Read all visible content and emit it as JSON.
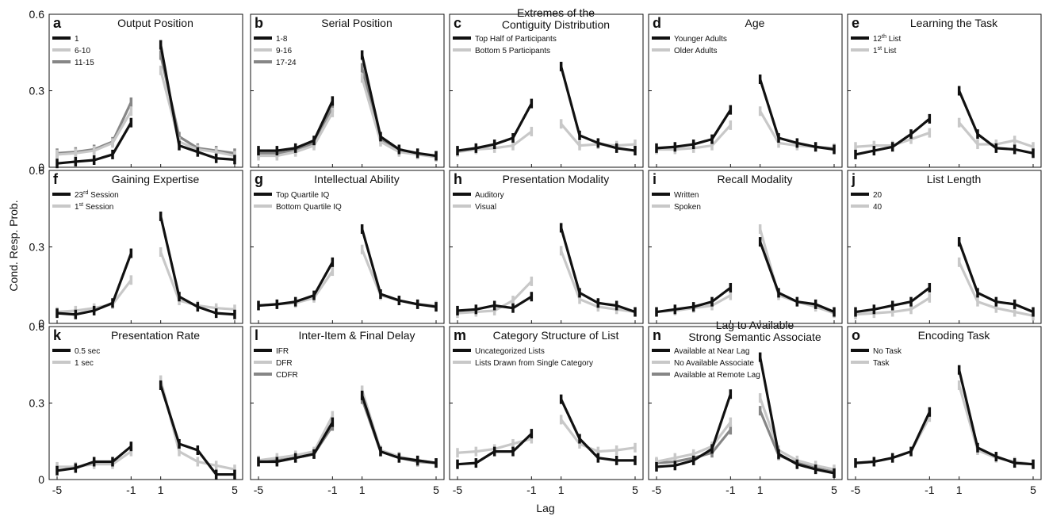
{
  "figure": {
    "x_label": "Lag",
    "y_label": "Cond. Resp. Prob."
  },
  "colors": {
    "black": "#111111",
    "light": "#c8c8c8",
    "mid": "#868686"
  },
  "chart_data": [
    {
      "type": "line",
      "letter": "a",
      "title": "Output Position",
      "ylim": [
        0,
        0.6
      ],
      "yticks": [
        "0",
        "0.3",
        "0.6"
      ],
      "x": [
        -5,
        -4,
        -3,
        -2,
        -1,
        1,
        2,
        3,
        4,
        5
      ],
      "legend": "top-left",
      "series": [
        {
          "name": "1",
          "color": "#111111",
          "values": [
            0.015,
            0.022,
            0.028,
            0.05,
            0.175,
            0.48,
            0.085,
            0.06,
            0.035,
            0.03
          ]
        },
        {
          "name": "6-10",
          "color": "#c8c8c8",
          "values": [
            0.05,
            0.055,
            0.065,
            0.095,
            0.22,
            0.38,
            0.1,
            0.07,
            0.06,
            0.045
          ]
        },
        {
          "name": "11-15",
          "color": "#868686",
          "values": [
            0.055,
            0.06,
            0.07,
            0.1,
            0.255,
            0.44,
            0.12,
            0.075,
            0.065,
            0.055
          ]
        }
      ]
    },
    {
      "type": "line",
      "letter": "b",
      "title": "Serial Position",
      "ylim": [
        0,
        0.6
      ],
      "yticks": [
        "0",
        "0.3",
        "0.6"
      ],
      "x": [
        -5,
        -4,
        -3,
        -2,
        -1,
        1,
        2,
        3,
        4,
        5
      ],
      "legend": "top-left",
      "series": [
        {
          "name": "1-8",
          "color": "#111111",
          "values": [
            0.065,
            0.065,
            0.075,
            0.105,
            0.26,
            0.44,
            0.12,
            0.07,
            0.055,
            0.045
          ]
        },
        {
          "name": "9-16",
          "color": "#c8c8c8",
          "values": [
            0.045,
            0.045,
            0.06,
            0.085,
            0.215,
            0.35,
            0.1,
            0.06,
            0.05,
            0.04
          ]
        },
        {
          "name": "17-24",
          "color": "#868686",
          "values": [
            0.055,
            0.055,
            0.065,
            0.095,
            0.235,
            0.39,
            0.11,
            0.065,
            0.05,
            0.045
          ]
        }
      ]
    },
    {
      "type": "line",
      "letter": "c",
      "title": "Extremes of the\nContiguity Distribution",
      "ylim": [
        0,
        0.6
      ],
      "yticks": [
        "0",
        "0.3",
        "0.6"
      ],
      "x": [
        -5,
        -4,
        -3,
        -2,
        -1,
        1,
        2,
        3,
        4,
        5
      ],
      "legend": "top-left",
      "series": [
        {
          "name": "Top Half of Participants",
          "color": "#111111",
          "values": [
            0.065,
            0.075,
            0.09,
            0.115,
            0.25,
            0.395,
            0.125,
            0.095,
            0.075,
            0.065
          ]
        },
        {
          "name": "Bottom 5 Participants",
          "color": "#c8c8c8",
          "values": [
            0.06,
            0.07,
            0.075,
            0.085,
            0.14,
            0.17,
            0.085,
            0.09,
            0.085,
            0.09
          ]
        }
      ]
    },
    {
      "type": "line",
      "letter": "d",
      "title": "Age",
      "ylim": [
        0,
        0.6
      ],
      "yticks": [
        "0",
        "0.3",
        "0.6"
      ],
      "x": [
        -5,
        -4,
        -3,
        -2,
        -1,
        1,
        2,
        3,
        4,
        5
      ],
      "legend": "top-left",
      "series": [
        {
          "name": "Younger Adults",
          "color": "#111111",
          "values": [
            0.075,
            0.08,
            0.09,
            0.11,
            0.225,
            0.345,
            0.115,
            0.095,
            0.08,
            0.07
          ]
        },
        {
          "name": "Older Adults",
          "color": "#c8c8c8",
          "values": [
            0.07,
            0.07,
            0.075,
            0.085,
            0.165,
            0.22,
            0.095,
            0.085,
            0.08,
            0.075
          ]
        }
      ]
    },
    {
      "type": "line",
      "letter": "e",
      "title": "Learning the Task",
      "ylim": [
        0,
        0.6
      ],
      "yticks": [
        "0",
        "0.3",
        "0.6"
      ],
      "x": [
        -5,
        -4,
        -3,
        -2,
        -1,
        1,
        2,
        3,
        4,
        5
      ],
      "legend": "top-left",
      "series": [
        {
          "name": "12",
          "sup": "th",
          "suffix": " List",
          "color": "#111111",
          "values": [
            0.05,
            0.065,
            0.08,
            0.13,
            0.19,
            0.3,
            0.13,
            0.075,
            0.07,
            0.055
          ]
        },
        {
          "name": "1",
          "sup": "st",
          "suffix": " List",
          "color": "#c8c8c8",
          "values": [
            0.08,
            0.085,
            0.085,
            0.11,
            0.135,
            0.175,
            0.09,
            0.09,
            0.105,
            0.08
          ]
        }
      ]
    },
    {
      "type": "line",
      "letter": "f",
      "title": "Gaining Expertise",
      "ylim": [
        0,
        0.6
      ],
      "yticks": [
        "0",
        "0.3",
        "0.6"
      ],
      "x": [
        -5,
        -4,
        -3,
        -2,
        -1,
        1,
        2,
        3,
        4,
        5
      ],
      "legend": "top-left",
      "series": [
        {
          "name": "23",
          "sup": "rd",
          "suffix": " Session",
          "color": "#111111",
          "values": [
            0.04,
            0.035,
            0.05,
            0.08,
            0.275,
            0.42,
            0.105,
            0.065,
            0.04,
            0.035
          ]
        },
        {
          "name": "1",
          "sup": "st",
          "suffix": " Session",
          "color": "#c8c8c8",
          "values": [
            0.045,
            0.05,
            0.06,
            0.075,
            0.17,
            0.28,
            0.09,
            0.07,
            0.06,
            0.055
          ]
        }
      ]
    },
    {
      "type": "line",
      "letter": "g",
      "title": "Intellectual Ability",
      "ylim": [
        0,
        0.6
      ],
      "yticks": [
        "0",
        "0.3",
        "0.6"
      ],
      "x": [
        -5,
        -4,
        -3,
        -2,
        -1,
        1,
        2,
        3,
        4,
        5
      ],
      "legend": "top-left",
      "series": [
        {
          "name": "Top Quartile IQ",
          "color": "#111111",
          "values": [
            0.07,
            0.075,
            0.085,
            0.11,
            0.24,
            0.37,
            0.115,
            0.09,
            0.075,
            0.065
          ]
        },
        {
          "name": "Bottom Quartile IQ",
          "color": "#c8c8c8",
          "values": [
            0.07,
            0.075,
            0.08,
            0.1,
            0.205,
            0.29,
            0.11,
            0.09,
            0.075,
            0.07
          ]
        }
      ]
    },
    {
      "type": "line",
      "letter": "h",
      "title": "Presentation Modality",
      "ylim": [
        0,
        0.6
      ],
      "yticks": [
        "0",
        "0.3",
        "0.6"
      ],
      "x": [
        -5,
        -4,
        -3,
        -2,
        -1,
        1,
        2,
        3,
        4,
        5
      ],
      "legend": "top-left",
      "series": [
        {
          "name": "Auditory",
          "color": "#111111",
          "values": [
            0.05,
            0.055,
            0.07,
            0.06,
            0.105,
            0.375,
            0.12,
            0.08,
            0.07,
            0.045
          ]
        },
        {
          "name": "Visual",
          "color": "#c8c8c8",
          "values": [
            0.04,
            0.045,
            0.05,
            0.09,
            0.165,
            0.285,
            0.095,
            0.065,
            0.055,
            0.045
          ]
        }
      ]
    },
    {
      "type": "line",
      "letter": "i",
      "title": "Recall Modality",
      "ylim": [
        0,
        0.6
      ],
      "yticks": [
        "0",
        "0.3",
        "0.6"
      ],
      "x": [
        -5,
        -4,
        -3,
        -2,
        -1,
        1,
        2,
        3,
        4,
        5
      ],
      "legend": "top-left",
      "series": [
        {
          "name": "Written",
          "color": "#111111",
          "values": [
            0.045,
            0.055,
            0.065,
            0.085,
            0.14,
            0.32,
            0.12,
            0.085,
            0.075,
            0.045
          ]
        },
        {
          "name": "Spoken",
          "color": "#c8c8c8",
          "values": [
            0.045,
            0.05,
            0.06,
            0.07,
            0.11,
            0.37,
            0.11,
            0.085,
            0.065,
            0.04
          ]
        }
      ]
    },
    {
      "type": "line",
      "letter": "j",
      "title": "List Length",
      "ylim": [
        0,
        0.6
      ],
      "yticks": [
        "0",
        "0.3",
        "0.6"
      ],
      "x": [
        -5,
        -4,
        -3,
        -2,
        -1,
        1,
        2,
        3,
        4,
        5
      ],
      "legend": "top-left",
      "series": [
        {
          "name": "20",
          "color": "#111111",
          "values": [
            0.045,
            0.055,
            0.07,
            0.085,
            0.14,
            0.32,
            0.12,
            0.085,
            0.075,
            0.045
          ]
        },
        {
          "name": "40",
          "color": "#c8c8c8",
          "values": [
            0.035,
            0.04,
            0.045,
            0.055,
            0.1,
            0.24,
            0.085,
            0.06,
            0.045,
            0.03
          ]
        }
      ]
    },
    {
      "type": "line",
      "letter": "k",
      "title": "Presentation Rate",
      "ylim": [
        0,
        0.6
      ],
      "yticks": [
        "0",
        "0.3",
        "0.6"
      ],
      "x": [
        -5,
        -4,
        -3,
        -2,
        -1,
        1,
        2,
        3,
        4,
        5
      ],
      "legend": "top-left",
      "series": [
        {
          "name": "0.5 sec",
          "color": "#111111",
          "values": [
            0.035,
            0.045,
            0.07,
            0.07,
            0.13,
            0.37,
            0.14,
            0.115,
            0.02,
            0.02
          ]
        },
        {
          "name": "1 sec",
          "color": "#c8c8c8",
          "values": [
            0.05,
            0.05,
            0.06,
            0.06,
            0.11,
            0.39,
            0.11,
            0.07,
            0.055,
            0.04
          ]
        }
      ]
    },
    {
      "type": "line",
      "letter": "l",
      "title": "Inter-Item & Final Delay",
      "ylim": [
        0,
        0.6
      ],
      "yticks": [
        "0",
        "0.3",
        "0.6"
      ],
      "x": [
        -5,
        -4,
        -3,
        -2,
        -1,
        1,
        2,
        3,
        4,
        5
      ],
      "legend": "top-left",
      "series": [
        {
          "name": "IFR",
          "color": "#111111",
          "values": [
            0.07,
            0.07,
            0.085,
            0.1,
            0.225,
            0.33,
            0.11,
            0.085,
            0.075,
            0.065
          ]
        },
        {
          "name": "DFR",
          "color": "#c8c8c8",
          "values": [
            0.075,
            0.085,
            0.095,
            0.11,
            0.25,
            0.35,
            0.115,
            0.09,
            0.075,
            0.065
          ]
        },
        {
          "name": "CDFR",
          "color": "#868686",
          "values": [
            0.07,
            0.075,
            0.085,
            0.1,
            0.21,
            0.315,
            0.11,
            0.085,
            0.07,
            0.065
          ]
        }
      ]
    },
    {
      "type": "line",
      "letter": "m",
      "title": "Category Structure of List",
      "ylim": [
        0,
        0.6
      ],
      "yticks": [
        "0",
        "0.3",
        "0.6"
      ],
      "x": [
        -5,
        -4,
        -3,
        -2,
        -1,
        1,
        2,
        3,
        4,
        5
      ],
      "legend": "top-left",
      "series": [
        {
          "name": "Uncategorized Lists",
          "color": "#111111",
          "values": [
            0.06,
            0.065,
            0.11,
            0.11,
            0.18,
            0.315,
            0.16,
            0.085,
            0.075,
            0.075
          ]
        },
        {
          "name": "Lists Drawn from Single Category",
          "color": "#c8c8c8",
          "values": [
            0.105,
            0.11,
            0.12,
            0.14,
            0.16,
            0.235,
            0.14,
            0.11,
            0.115,
            0.125
          ]
        }
      ]
    },
    {
      "type": "line",
      "letter": "n",
      "title": "Lag to Available\nStrong Semantic Associate",
      "ylim": [
        0,
        0.6
      ],
      "yticks": [
        "0",
        "0.3",
        "0.6"
      ],
      "x": [
        -5,
        -4,
        -3,
        -2,
        -1,
        1,
        2,
        3,
        4,
        5
      ],
      "legend": "top-left",
      "series": [
        {
          "name": "Available at Near Lag",
          "color": "#111111",
          "values": [
            0.05,
            0.055,
            0.075,
            0.12,
            0.335,
            0.48,
            0.1,
            0.06,
            0.04,
            0.025
          ]
        },
        {
          "name": "No Available Associate",
          "color": "#c8c8c8",
          "values": [
            0.07,
            0.085,
            0.1,
            0.13,
            0.225,
            0.32,
            0.115,
            0.075,
            0.055,
            0.04
          ]
        },
        {
          "name": "Available at Remote Lag",
          "color": "#868686",
          "values": [
            0.065,
            0.07,
            0.085,
            0.105,
            0.195,
            0.27,
            0.095,
            0.065,
            0.045,
            0.03
          ]
        }
      ]
    },
    {
      "type": "line",
      "letter": "o",
      "title": "Encoding Task",
      "ylim": [
        0,
        0.6
      ],
      "yticks": [
        "0",
        "0.3",
        "0.6"
      ],
      "x": [
        -5,
        -4,
        -3,
        -2,
        -1,
        1,
        2,
        3,
        4,
        5
      ],
      "legend": "top-left",
      "series": [
        {
          "name": "No Task",
          "color": "#111111",
          "values": [
            0.065,
            0.07,
            0.085,
            0.11,
            0.265,
            0.43,
            0.125,
            0.09,
            0.065,
            0.06
          ]
        },
        {
          "name": "Task",
          "color": "#c8c8c8",
          "values": [
            0.065,
            0.07,
            0.085,
            0.11,
            0.245,
            0.37,
            0.115,
            0.085,
            0.07,
            0.06
          ]
        }
      ]
    }
  ]
}
